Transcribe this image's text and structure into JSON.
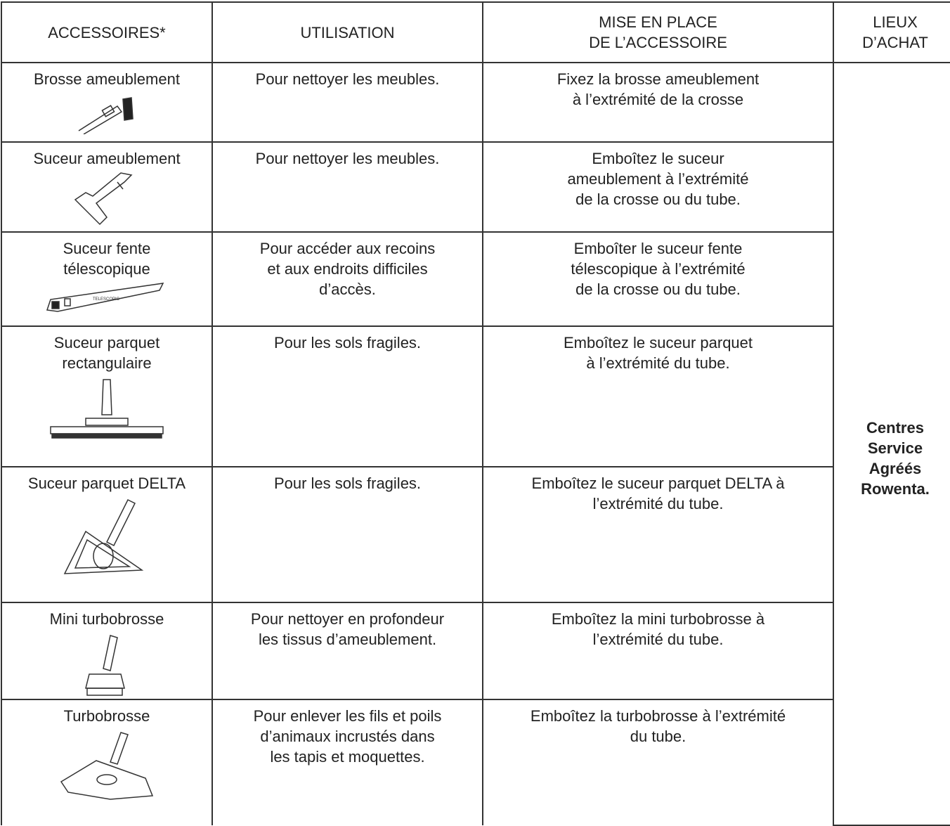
{
  "table": {
    "header": [
      [
        "ACCESSOIRES*"
      ],
      [
        "UTILISATION"
      ],
      [
        "MISE EN PLACE",
        "DE L’ACCESSOIRE"
      ],
      [
        "LIEUX",
        "D’ACHAT"
      ]
    ],
    "rows": [
      {
        "accessory": [
          "Brosse ameublement"
        ],
        "use": [
          "Pour nettoyer les meubles."
        ],
        "setup": [
          "Fixez la brosse ameublement",
          "à l’extrémité de la crosse"
        ]
      },
      {
        "accessory": [
          "Suceur ameublement"
        ],
        "use": [
          "Pour nettoyer les meubles."
        ],
        "setup": [
          "Emboîtez le suceur",
          "ameublement à l’extrémité",
          "de la crosse ou du tube."
        ]
      },
      {
        "accessory": [
          "Suceur fente",
          "télescopique"
        ],
        "icon_label": "TELESCOPIC",
        "use": [
          "Pour accéder aux recoins",
          "et aux endroits difficiles",
          "d’accès."
        ],
        "setup": [
          "Emboîter le suceur fente",
          "télescopique à l’extrémité",
          "de la crosse ou du tube."
        ]
      },
      {
        "accessory": [
          "Suceur parquet",
          "rectangulaire"
        ],
        "use": [
          "Pour les sols fragiles."
        ],
        "setup": [
          "Emboîtez le suceur parquet",
          "à l’extrémité du tube."
        ]
      },
      {
        "accessory": [
          "Suceur parquet DELTA"
        ],
        "use": [
          "Pour les sols fragiles."
        ],
        "setup": [
          "Emboîtez le suceur parquet DELTA à",
          "l’extrémité du tube."
        ]
      },
      {
        "accessory": [
          "Mini turbobrosse"
        ],
        "use": [
          "Pour nettoyer en profondeur",
          "les tissus d’ameublement."
        ],
        "setup": [
          "Emboîtez la mini turbobrosse à",
          "l’extrémité du tube."
        ]
      },
      {
        "accessory": [
          "Turbobrosse"
        ],
        "use": [
          "Pour enlever les fils et poils",
          "d’animaux incrustés dans",
          "les tapis et moquettes."
        ],
        "setup": [
          "Emboîtez la turbobrosse à l’extrémité",
          "du tube."
        ]
      }
    ],
    "purchase": [
      "Centres",
      "Service",
      "Agréés",
      "Rowenta."
    ]
  }
}
